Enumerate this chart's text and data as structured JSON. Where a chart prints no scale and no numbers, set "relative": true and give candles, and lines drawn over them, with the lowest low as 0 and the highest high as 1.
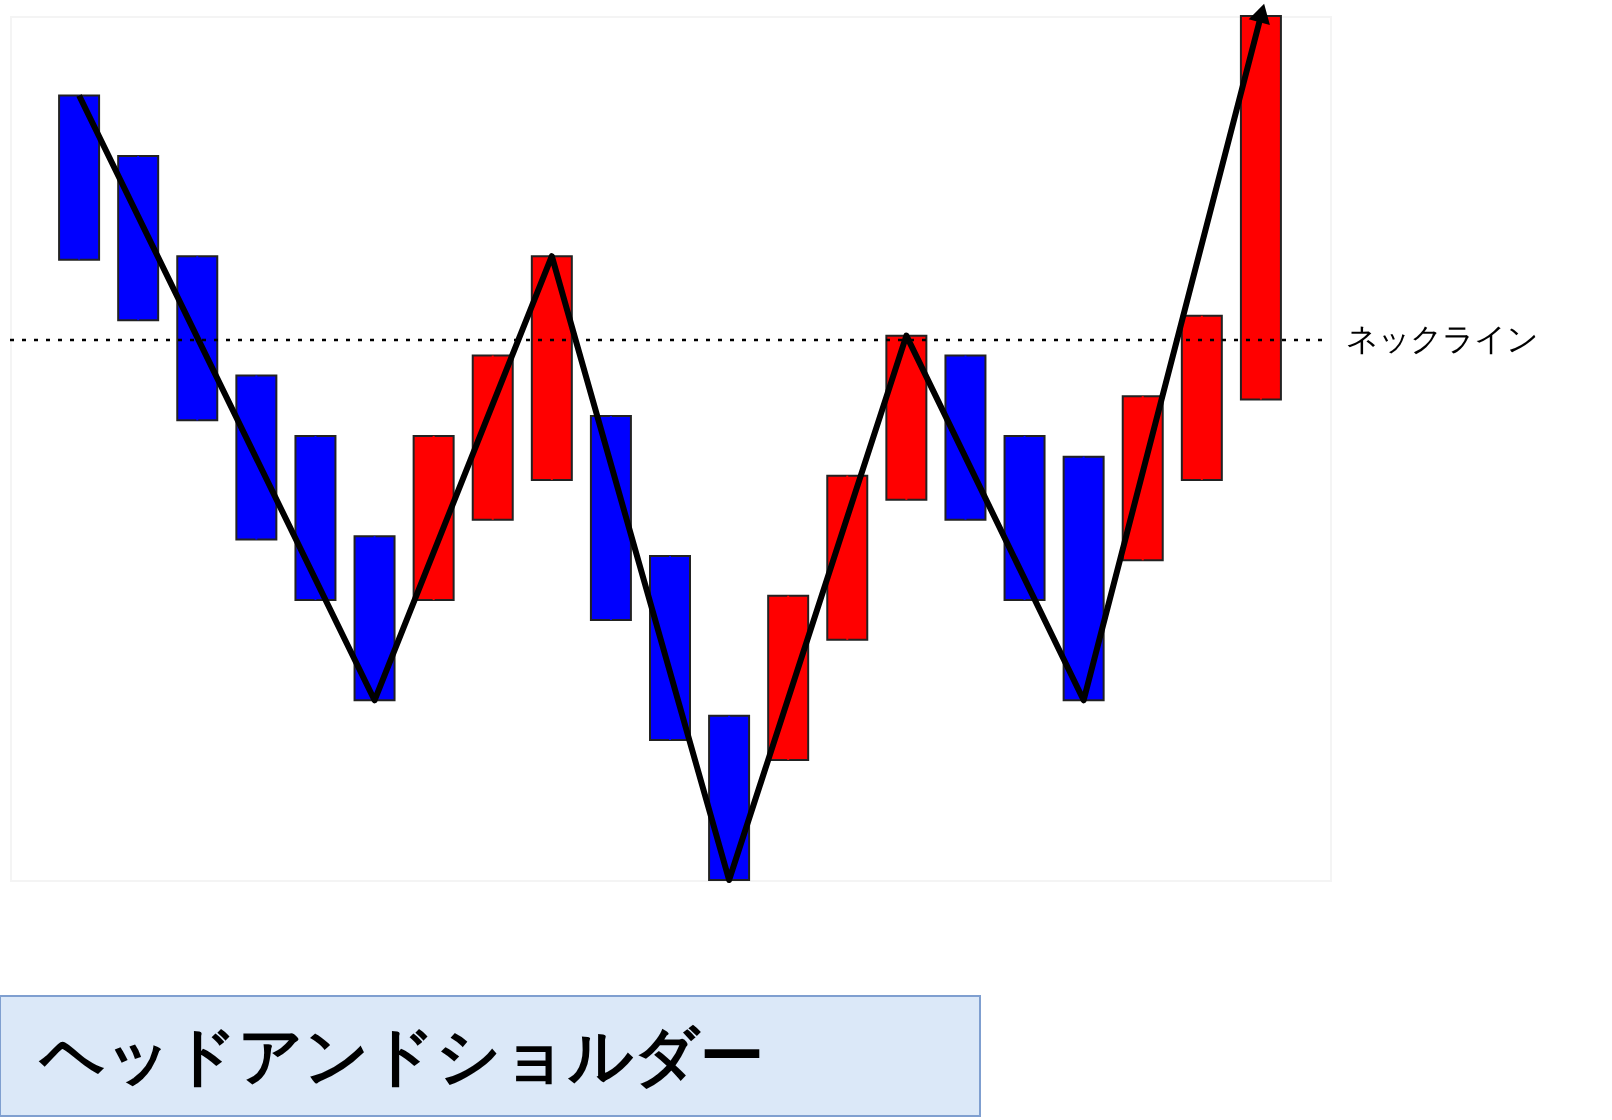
{
  "chart_data": {
    "type": "candlestick",
    "relative": true,
    "title": "ヘッドアンドショルダー",
    "tick_labels": false,
    "grid": false,
    "categories": [
      null,
      null,
      null,
      null,
      null,
      null,
      null,
      null,
      null,
      null,
      null,
      null,
      null,
      null,
      null,
      null,
      null,
      null,
      null,
      null,
      null
    ],
    "ohlc": [
      [
        0.908,
        0.908,
        0.718,
        0.718
      ],
      [
        0.838,
        0.838,
        0.648,
        0.648
      ],
      [
        0.722,
        0.722,
        0.532,
        0.532
      ],
      [
        0.584,
        0.584,
        0.394,
        0.394
      ],
      [
        0.514,
        0.514,
        0.324,
        0.324
      ],
      [
        0.398,
        0.398,
        0.208,
        0.208
      ],
      [
        0.324,
        0.514,
        0.324,
        0.514
      ],
      [
        0.417,
        0.607,
        0.417,
        0.607
      ],
      [
        0.463,
        0.722,
        0.463,
        0.722
      ],
      [
        0.537,
        0.537,
        0.301,
        0.301
      ],
      [
        0.375,
        0.375,
        0.162,
        0.162
      ],
      [
        0.19,
        0.19,
        0,
        0
      ],
      [
        0.139,
        0.329,
        0.139,
        0.329
      ],
      [
        0.278,
        0.468,
        0.278,
        0.468
      ],
      [
        0.44,
        0.63,
        0.44,
        0.63
      ],
      [
        0.607,
        0.607,
        0.417,
        0.417
      ],
      [
        0.514,
        0.514,
        0.324,
        0.324
      ],
      [
        0.49,
        0.49,
        0.208,
        0.208
      ],
      [
        0.37,
        0.56,
        0.37,
        0.56
      ],
      [
        0.463,
        0.653,
        0.463,
        0.653
      ],
      [
        0.556,
        1.0,
        0.556,
        1.0
      ]
    ],
    "colors": [
      "#0000ff",
      "#0000ff",
      "#0000ff",
      "#0000ff",
      "#0000ff",
      "#0000ff",
      "#ff0000",
      "#ff0000",
      "#ff0000",
      "#0000ff",
      "#0000ff",
      "#0000ff",
      "#ff0000",
      "#ff0000",
      "#ff0000",
      "#0000ff",
      "#0000ff",
      "#0000ff",
      "#ff0000",
      "#ff0000",
      "#ff0000"
    ],
    "series": [
      {
        "type": "line",
        "values": [
          0.908,
          null,
          null,
          null,
          null,
          0.208,
          null,
          null,
          0.722,
          null,
          null,
          0,
          null,
          null,
          0.63,
          null,
          null,
          0.208,
          null,
          null,
          1.0
        ],
        "color": "#000000"
      }
    ],
    "ref_lines": [
      {
        "axis": "y",
        "value": 0.625,
        "label": "ネックライン",
        "color": "#000000",
        "line_style": "dotted"
      }
    ]
  }
}
